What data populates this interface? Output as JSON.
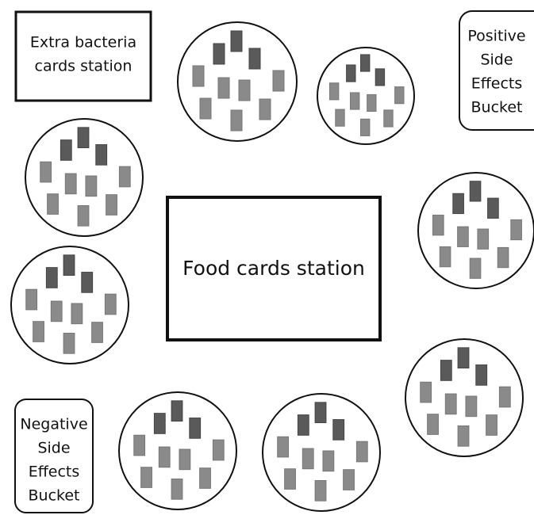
{
  "stations": {
    "extra_bacteria": {
      "lines": [
        "Extra bacteria",
        "cards station"
      ]
    },
    "positive_bucket": {
      "lines": [
        "Positive",
        "Side",
        "Effects",
        "Bucket"
      ]
    },
    "negative_bucket": {
      "lines": [
        "Negative",
        "Side",
        "Effects",
        "Bucket"
      ]
    },
    "food": {
      "lines": [
        "Food cards station"
      ]
    }
  }
}
